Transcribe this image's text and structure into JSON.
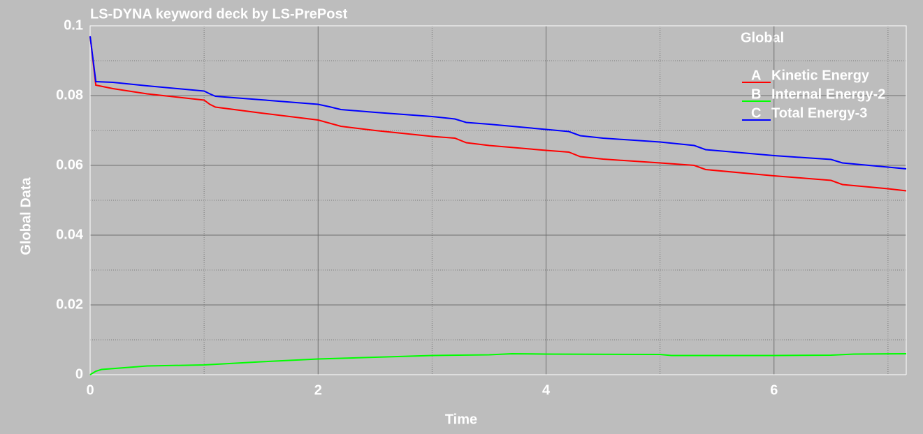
{
  "chart_data": {
    "type": "line",
    "title": "LS-DYNA keyword deck by LS-PrePost",
    "xlabel": "Time",
    "ylabel": "Global Data",
    "legend_title": "Global",
    "legend_position": "upper right",
    "grid": true,
    "xlim": [
      0,
      7.16
    ],
    "ylim": [
      0,
      0.1
    ],
    "xticks": [
      0,
      2,
      4,
      6
    ],
    "yticks": [
      0,
      0.02,
      0.04,
      0.06,
      0.08,
      0.1
    ],
    "x_minor_ticks": [
      1,
      3,
      5,
      7
    ],
    "y_minor_ticks": [
      0.01,
      0.03,
      0.05,
      0.07,
      0.09
    ],
    "series": [
      {
        "letter": "A",
        "name": "Kinetic Energy",
        "color": "#ff0000",
        "x": [
          0,
          0.05,
          0.2,
          0.5,
          1.0,
          1.05,
          1.1,
          1.5,
          2.0,
          2.2,
          2.5,
          3.0,
          3.2,
          3.3,
          3.5,
          4.0,
          4.2,
          4.3,
          4.5,
          5.0,
          5.3,
          5.4,
          6.0,
          6.5,
          6.6,
          7.0,
          7.16
        ],
        "values": [
          0.097,
          0.083,
          0.082,
          0.0805,
          0.0787,
          0.0775,
          0.0767,
          0.075,
          0.073,
          0.0712,
          0.07,
          0.0683,
          0.0678,
          0.0665,
          0.0657,
          0.0643,
          0.0638,
          0.0625,
          0.0618,
          0.0607,
          0.06,
          0.0588,
          0.057,
          0.0557,
          0.0545,
          0.0533,
          0.0527
        ]
      },
      {
        "letter": "B",
        "name": "Internal Energy-2",
        "color": "#00ff00",
        "x": [
          0,
          0.05,
          0.1,
          0.5,
          1.0,
          1.5,
          2.0,
          2.5,
          3.0,
          3.5,
          3.7,
          4.0,
          5.0,
          5.1,
          6.0,
          6.5,
          6.7,
          7.16
        ],
        "values": [
          0,
          0.001,
          0.0015,
          0.0025,
          0.0028,
          0.0037,
          0.0045,
          0.005,
          0.0055,
          0.0057,
          0.006,
          0.0059,
          0.0058,
          0.0055,
          0.0055,
          0.0056,
          0.0059,
          0.006
        ]
      },
      {
        "letter": "C",
        "name": "Total Energy-3",
        "color": "#0000ff",
        "x": [
          0,
          0.05,
          0.2,
          0.5,
          1.0,
          1.05,
          1.1,
          1.5,
          2.0,
          2.1,
          2.2,
          2.5,
          3.0,
          3.2,
          3.3,
          3.5,
          4.0,
          4.2,
          4.3,
          4.5,
          5.0,
          5.3,
          5.4,
          6.0,
          6.5,
          6.6,
          7.0,
          7.16
        ],
        "values": [
          0.097,
          0.084,
          0.0838,
          0.0828,
          0.0813,
          0.0805,
          0.0798,
          0.0788,
          0.0775,
          0.0768,
          0.076,
          0.0752,
          0.074,
          0.0733,
          0.0723,
          0.0718,
          0.0703,
          0.0697,
          0.0685,
          0.0678,
          0.0667,
          0.0657,
          0.0645,
          0.0628,
          0.0617,
          0.0607,
          0.0595,
          0.059
        ]
      }
    ]
  }
}
